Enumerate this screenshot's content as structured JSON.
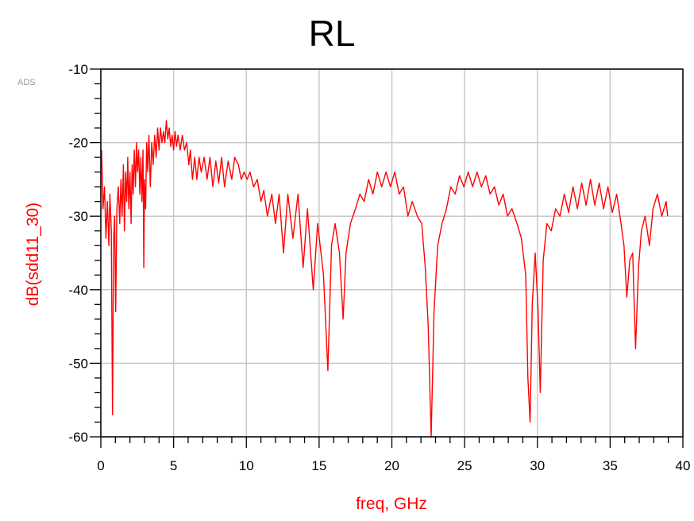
{
  "chart_data": {
    "type": "line",
    "title": "RL",
    "xlabel": "freq, GHz",
    "ylabel": "dB(sdd11_30)",
    "watermark": "ADS",
    "xlim": [
      0,
      40
    ],
    "ylim": [
      -60,
      -10
    ],
    "xticks": [
      "0",
      "5",
      "10",
      "15",
      "20",
      "25",
      "30",
      "35",
      "40"
    ],
    "yticks": [
      "-10",
      "-20",
      "-30",
      "-40",
      "-50",
      "-60"
    ],
    "grid": true,
    "legend": "none",
    "series": [
      {
        "color": "#ff0000",
        "points": [
          [
            0.05,
            -21
          ],
          [
            0.15,
            -29
          ],
          [
            0.25,
            -26
          ],
          [
            0.35,
            -33
          ],
          [
            0.45,
            -28
          ],
          [
            0.55,
            -34
          ],
          [
            0.62,
            -27
          ],
          [
            0.72,
            -32
          ],
          [
            0.8,
            -57
          ],
          [
            0.88,
            -33
          ],
          [
            0.95,
            -30
          ],
          [
            1.02,
            -43
          ],
          [
            1.1,
            -29
          ],
          [
            1.2,
            -26
          ],
          [
            1.3,
            -31
          ],
          [
            1.38,
            -25
          ],
          [
            1.46,
            -30
          ],
          [
            1.55,
            -23
          ],
          [
            1.62,
            -32
          ],
          [
            1.7,
            -24
          ],
          [
            1.78,
            -28
          ],
          [
            1.85,
            -22
          ],
          [
            1.92,
            -29
          ],
          [
            2.0,
            -24
          ],
          [
            2.08,
            -31
          ],
          [
            2.15,
            -23
          ],
          [
            2.22,
            -27
          ],
          [
            2.3,
            -21
          ],
          [
            2.38,
            -26
          ],
          [
            2.45,
            -20
          ],
          [
            2.52,
            -24
          ],
          [
            2.6,
            -21
          ],
          [
            2.68,
            -27
          ],
          [
            2.75,
            -22
          ],
          [
            2.82,
            -28
          ],
          [
            2.9,
            -21
          ],
          [
            2.95,
            -37
          ],
          [
            3.0,
            -25
          ],
          [
            3.08,
            -29
          ],
          [
            3.15,
            -20
          ],
          [
            3.22,
            -24
          ],
          [
            3.3,
            -19
          ],
          [
            3.4,
            -26
          ],
          [
            3.5,
            -20
          ],
          [
            3.6,
            -23
          ],
          [
            3.7,
            -19
          ],
          [
            3.8,
            -22
          ],
          [
            3.9,
            -18
          ],
          [
            4.0,
            -21
          ],
          [
            4.1,
            -18
          ],
          [
            4.2,
            -20
          ],
          [
            4.3,
            -18.5
          ],
          [
            4.4,
            -20
          ],
          [
            4.5,
            -17
          ],
          [
            4.6,
            -19.5
          ],
          [
            4.7,
            -18
          ],
          [
            4.8,
            -20.5
          ],
          [
            4.9,
            -19
          ],
          [
            5.0,
            -21
          ],
          [
            5.1,
            -18.5
          ],
          [
            5.2,
            -20.5
          ],
          [
            5.3,
            -19
          ],
          [
            5.45,
            -21
          ],
          [
            5.6,
            -19
          ],
          [
            5.75,
            -21
          ],
          [
            5.9,
            -20
          ],
          [
            6.05,
            -23
          ],
          [
            6.15,
            -21
          ],
          [
            6.3,
            -25
          ],
          [
            6.45,
            -22
          ],
          [
            6.6,
            -25
          ],
          [
            6.75,
            -22
          ],
          [
            6.9,
            -24
          ],
          [
            7.1,
            -22
          ],
          [
            7.3,
            -25
          ],
          [
            7.5,
            -22
          ],
          [
            7.7,
            -26
          ],
          [
            7.9,
            -22.5
          ],
          [
            8.1,
            -25.5
          ],
          [
            8.3,
            -22
          ],
          [
            8.5,
            -26
          ],
          [
            8.75,
            -22.5
          ],
          [
            9.0,
            -25
          ],
          [
            9.2,
            -22
          ],
          [
            9.45,
            -23
          ],
          [
            9.65,
            -25
          ],
          [
            9.85,
            -24
          ],
          [
            10.05,
            -25
          ],
          [
            10.25,
            -24
          ],
          [
            10.5,
            -26
          ],
          [
            10.75,
            -25
          ],
          [
            11.0,
            -28
          ],
          [
            11.2,
            -26.5
          ],
          [
            11.45,
            -30
          ],
          [
            11.75,
            -27
          ],
          [
            12.0,
            -31
          ],
          [
            12.25,
            -27
          ],
          [
            12.55,
            -35
          ],
          [
            12.85,
            -27
          ],
          [
            13.2,
            -33
          ],
          [
            13.55,
            -27
          ],
          [
            13.9,
            -37
          ],
          [
            14.2,
            -29
          ],
          [
            14.6,
            -40
          ],
          [
            14.9,
            -31
          ],
          [
            15.3,
            -38
          ],
          [
            15.6,
            -51
          ],
          [
            15.85,
            -34
          ],
          [
            16.1,
            -31
          ],
          [
            16.4,
            -35
          ],
          [
            16.65,
            -44
          ],
          [
            16.85,
            -35
          ],
          [
            17.15,
            -31
          ],
          [
            17.5,
            -29
          ],
          [
            17.8,
            -27
          ],
          [
            18.1,
            -28
          ],
          [
            18.4,
            -25
          ],
          [
            18.7,
            -27
          ],
          [
            19.0,
            -24
          ],
          [
            19.3,
            -26
          ],
          [
            19.6,
            -24
          ],
          [
            19.9,
            -26
          ],
          [
            20.2,
            -24
          ],
          [
            20.5,
            -27
          ],
          [
            20.8,
            -26
          ],
          [
            21.1,
            -30
          ],
          [
            21.4,
            -28
          ],
          [
            21.75,
            -30
          ],
          [
            22.05,
            -31
          ],
          [
            22.3,
            -37
          ],
          [
            22.5,
            -45
          ],
          [
            22.7,
            -60
          ],
          [
            22.9,
            -43
          ],
          [
            23.15,
            -34
          ],
          [
            23.45,
            -31
          ],
          [
            23.75,
            -29
          ],
          [
            24.05,
            -26
          ],
          [
            24.35,
            -27
          ],
          [
            24.65,
            -24.5
          ],
          [
            24.95,
            -26
          ],
          [
            25.25,
            -24
          ],
          [
            25.55,
            -26
          ],
          [
            25.85,
            -24
          ],
          [
            26.15,
            -26
          ],
          [
            26.45,
            -24.5
          ],
          [
            26.75,
            -27
          ],
          [
            27.05,
            -26
          ],
          [
            27.35,
            -28.5
          ],
          [
            27.65,
            -27
          ],
          [
            27.95,
            -30
          ],
          [
            28.25,
            -29
          ],
          [
            28.6,
            -31
          ],
          [
            28.9,
            -33
          ],
          [
            29.2,
            -38
          ],
          [
            29.35,
            -52
          ],
          [
            29.5,
            -58
          ],
          [
            29.65,
            -42
          ],
          [
            29.85,
            -35
          ],
          [
            30.05,
            -43
          ],
          [
            30.2,
            -54
          ],
          [
            30.4,
            -36
          ],
          [
            30.65,
            -31
          ],
          [
            30.95,
            -32
          ],
          [
            31.25,
            -29
          ],
          [
            31.55,
            -30
          ],
          [
            31.85,
            -27
          ],
          [
            32.15,
            -29.5
          ],
          [
            32.45,
            -26
          ],
          [
            32.75,
            -29
          ],
          [
            33.05,
            -25.5
          ],
          [
            33.35,
            -28.5
          ],
          [
            33.65,
            -25
          ],
          [
            33.95,
            -28.5
          ],
          [
            34.25,
            -25.5
          ],
          [
            34.55,
            -29
          ],
          [
            34.85,
            -26
          ],
          [
            35.15,
            -29.5
          ],
          [
            35.45,
            -27
          ],
          [
            35.75,
            -31
          ],
          [
            35.95,
            -34
          ],
          [
            36.15,
            -41
          ],
          [
            36.35,
            -36
          ],
          [
            36.55,
            -35
          ],
          [
            36.75,
            -48
          ],
          [
            36.95,
            -37
          ],
          [
            37.15,
            -32
          ],
          [
            37.4,
            -30
          ],
          [
            37.7,
            -34
          ],
          [
            37.95,
            -29
          ],
          [
            38.25,
            -27
          ],
          [
            38.55,
            -30
          ],
          [
            38.85,
            -28
          ],
          [
            38.95,
            -30
          ]
        ]
      }
    ]
  }
}
